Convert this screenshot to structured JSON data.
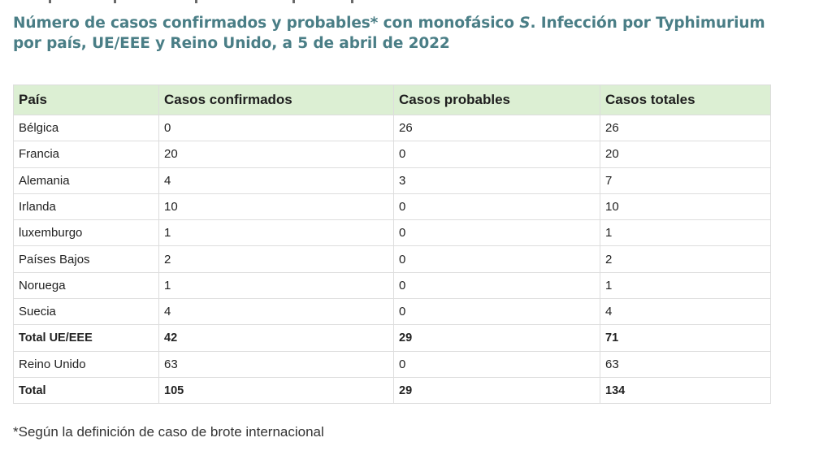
{
  "title": {
    "part1": "Número de casos confirmados y probables* con monofásico ",
    "italic": "S",
    "part2": ". Infección por Typhimurium por país, UE/EEE y Reino Unido, a 5 de abril de 2022"
  },
  "table": {
    "headers": [
      "País",
      "Casos confirmados",
      "Casos probables",
      "Casos totales"
    ],
    "rows": [
      {
        "country": "Bélgica",
        "confirmed": "0",
        "probable": "26",
        "total": "26"
      },
      {
        "country": "Francia",
        "confirmed": "20",
        "probable": "0",
        "total": "20"
      },
      {
        "country": "Alemania",
        "confirmed": "4",
        "probable": "3",
        "total": "7"
      },
      {
        "country": "Irlanda",
        "confirmed": "10",
        "probable": "0",
        "total": "10"
      },
      {
        "country": "luxemburgo",
        "confirmed": "1",
        "probable": "0",
        "total": "1"
      },
      {
        "country": "Países Bajos",
        "confirmed": "2",
        "probable": "0",
        "total": "2"
      },
      {
        "country": "Noruega",
        "confirmed": "1",
        "probable": "0",
        "total": "1"
      },
      {
        "country": "Suecia",
        "confirmed": "4",
        "probable": "0",
        "total": "4"
      },
      {
        "country": "Total UE/EEE",
        "confirmed": "42",
        "probable": "29",
        "total": "71"
      },
      {
        "country": "Reino Unido",
        "confirmed": "63",
        "probable": "0",
        "total": "63"
      },
      {
        "country": "Total",
        "confirmed": "105",
        "probable": "29",
        "total": "134"
      }
    ]
  },
  "footnote": "*Según la definición de caso de brote internacional",
  "colors": {
    "title": "#4a7e86",
    "header_bg": "#dcefd3",
    "border": "#dddddd"
  }
}
